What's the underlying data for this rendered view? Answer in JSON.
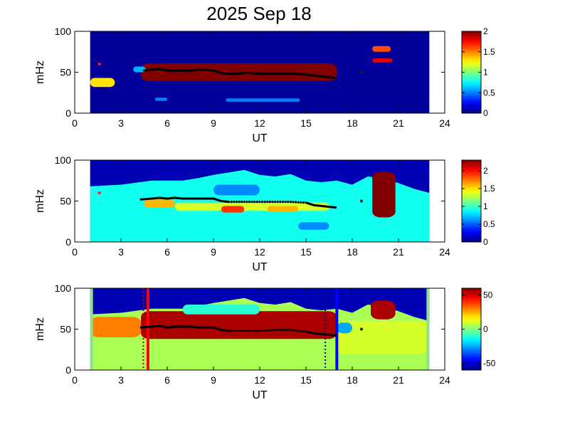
{
  "figure_title": "2025 Sep 18",
  "chart_data": [
    {
      "type": "heatmap",
      "panel": "top",
      "xlabel": "UT",
      "ylabel": "mHz",
      "xlim": [
        0,
        24
      ],
      "ylim": [
        0,
        100
      ],
      "xticks": [
        "0",
        "3",
        "6",
        "9",
        "12",
        "15",
        "18",
        "21",
        "24"
      ],
      "yticks": [
        "0",
        "50",
        "100"
      ],
      "data_x_range": [
        1,
        23
      ],
      "colorbar": {
        "range": [
          0,
          2
        ],
        "ticks": [
          "0",
          "0.5",
          "1",
          "1.5",
          "2"
        ],
        "colormap": "jet"
      },
      "background_value": 0.05,
      "regions": [
        {
          "x": [
            4.3,
            17.0
          ],
          "y": [
            39,
            61
          ],
          "value": 2.0
        },
        {
          "x": [
            1.0,
            2.6
          ],
          "y": [
            32,
            43
          ],
          "value": 1.3
        },
        {
          "x": [
            19.3,
            20.5
          ],
          "y": [
            75,
            82
          ],
          "value": 1.6
        },
        {
          "x": [
            19.3,
            20.6
          ],
          "y": [
            62,
            67
          ],
          "value": 1.8
        },
        {
          "x": [
            3.8,
            4.6
          ],
          "y": [
            50,
            57
          ],
          "value": 0.6
        },
        {
          "x": [
            9.8,
            14.6
          ],
          "y": [
            14,
            18
          ],
          "value": 0.5
        },
        {
          "x": [
            5.2,
            6.0
          ],
          "y": [
            15,
            19
          ],
          "value": 0.5
        }
      ],
      "peak_trace": {
        "x": [
          4.5,
          5.0,
          5.5,
          6.0,
          6.5,
          7.0,
          7.5,
          8.0,
          8.5,
          9.0,
          9.5,
          10.0,
          10.5,
          11.0,
          11.5,
          12.0,
          12.5,
          13.0,
          13.5,
          14.0,
          14.5,
          15.0,
          15.5,
          16.0,
          16.5,
          16.9
        ],
        "y": [
          52,
          53,
          54,
          52,
          52,
          52,
          52,
          53,
          53,
          52,
          49,
          48,
          48,
          49,
          49,
          48,
          48,
          48,
          48,
          48,
          48,
          47,
          46,
          45,
          44,
          43
        ]
      },
      "markers": [
        {
          "x": 18.6,
          "y": 50
        },
        {
          "x": 1.6,
          "y": 60
        }
      ]
    },
    {
      "type": "heatmap",
      "panel": "middle",
      "xlabel": "UT",
      "ylabel": "mHz",
      "xlim": [
        0,
        24
      ],
      "ylim": [
        0,
        100
      ],
      "xticks": [
        "0",
        "3",
        "6",
        "9",
        "12",
        "15",
        "18",
        "21",
        "24"
      ],
      "yticks": [
        "0",
        "50",
        "100"
      ],
      "data_x_range": [
        1,
        23
      ],
      "colorbar": {
        "range": [
          0,
          2.3
        ],
        "ticks": [
          "0",
          "0.5",
          "1",
          "1.5",
          "2"
        ],
        "colormap": "jet"
      },
      "background_value": 0.9,
      "upper_boundary": {
        "x": [
          1,
          3,
          5,
          7,
          8,
          9,
          10,
          11,
          12,
          13,
          14,
          15,
          16,
          17,
          18,
          19,
          20,
          21,
          22,
          23
        ],
        "y": [
          68,
          70,
          75,
          75,
          78,
          82,
          85,
          88,
          82,
          80,
          83,
          75,
          73,
          75,
          70,
          80,
          78,
          72,
          65,
          60
        ]
      },
      "regions": [
        {
          "x": [
            4.5,
            6.5
          ],
          "y": [
            42,
            52
          ],
          "value": 1.6
        },
        {
          "x": [
            6.5,
            16.5
          ],
          "y": [
            38,
            48
          ],
          "value": 1.35
        },
        {
          "x": [
            9.5,
            11.0
          ],
          "y": [
            36,
            44
          ],
          "value": 1.9
        },
        {
          "x": [
            12.5,
            14.5
          ],
          "y": [
            37,
            44
          ],
          "value": 1.6
        },
        {
          "x": [
            19.3,
            20.8
          ],
          "y": [
            30,
            86
          ],
          "value": 2.3
        },
        {
          "x": [
            9.0,
            12.0
          ],
          "y": [
            57,
            70
          ],
          "value": 0.6
        },
        {
          "x": [
            14.5,
            16.5
          ],
          "y": [
            15,
            24
          ],
          "value": 0.6
        }
      ],
      "peak_trace": {
        "x": [
          4.3,
          5.0,
          5.5,
          6.0,
          6.5,
          7.0,
          7.5,
          8.0,
          8.5,
          9.0,
          9.5,
          10.0,
          11.0,
          12.0,
          13.0,
          14.0,
          15.0,
          15.5,
          16.0,
          16.5,
          17.0
        ],
        "y": [
          52,
          53,
          54,
          53,
          54,
          53,
          53,
          53,
          53,
          53,
          50,
          49,
          49,
          49,
          49,
          49,
          48,
          45,
          44,
          43,
          42
        ]
      },
      "markers": [
        {
          "x": 18.6,
          "y": 50
        },
        {
          "x": 1.6,
          "y": 60
        }
      ]
    },
    {
      "type": "heatmap",
      "panel": "bottom",
      "xlabel": "UT",
      "ylabel": "mHz",
      "xlim": [
        0,
        24
      ],
      "ylim": [
        0,
        100
      ],
      "xticks": [
        "0",
        "3",
        "6",
        "9",
        "12",
        "15",
        "18",
        "21",
        "24"
      ],
      "yticks": [
        "0",
        "50",
        "100"
      ],
      "data_x_range": [
        1,
        23
      ],
      "colorbar": {
        "range": [
          -60,
          60
        ],
        "ticks": [
          "-50",
          "0",
          "50"
        ],
        "colormap": "jet"
      },
      "background_value": 5,
      "upper_boundary": {
        "x": [
          1,
          3,
          5,
          7,
          8,
          9,
          10,
          11,
          12,
          13,
          14,
          15,
          16,
          17,
          18,
          19,
          20,
          21,
          22,
          23
        ],
        "y": [
          68,
          70,
          75,
          75,
          78,
          82,
          85,
          88,
          82,
          80,
          83,
          75,
          73,
          75,
          70,
          80,
          78,
          72,
          65,
          60
        ]
      },
      "regions": [
        {
          "x": [
            1.0,
            4.3
          ],
          "y": [
            40,
            65
          ],
          "value": 30
        },
        {
          "x": [
            4.3,
            17.0
          ],
          "y": [
            38,
            72
          ],
          "value": 55
        },
        {
          "x": [
            17.0,
            23.0
          ],
          "y": [
            20,
            60
          ],
          "value": 10
        },
        {
          "x": [
            17.0,
            18.0
          ],
          "y": [
            45,
            58
          ],
          "value": -25
        },
        {
          "x": [
            19.2,
            20.8
          ],
          "y": [
            62,
            85
          ],
          "value": 55
        },
        {
          "x": [
            7.0,
            12.0
          ],
          "y": [
            68,
            80
          ],
          "value": -10
        }
      ],
      "edge_value": -5,
      "vertical_lines": [
        {
          "x": 4.75,
          "color": "#ff0000",
          "style": "solid"
        },
        {
          "x": 4.45,
          "color": "#aa0000",
          "style": "dotted"
        },
        {
          "x": 17.0,
          "color": "#0000ff",
          "style": "solid"
        },
        {
          "x": 16.25,
          "color": "#000080",
          "style": "dotted"
        }
      ],
      "peak_trace": {
        "x": [
          4.3,
          5.0,
          5.5,
          6.0,
          6.5,
          7.0,
          7.5,
          8.0,
          8.5,
          9.0,
          9.5,
          10.0,
          11.0,
          12.0,
          13.0,
          14.0,
          15.0,
          15.5,
          16.0,
          16.5,
          17.0
        ],
        "y": [
          52,
          53,
          54,
          52,
          53,
          53,
          53,
          52,
          52,
          52,
          49,
          48,
          48,
          48,
          49,
          49,
          47,
          45,
          44,
          43,
          42
        ]
      },
      "markers": [
        {
          "x": 18.6,
          "y": 50
        }
      ]
    }
  ]
}
